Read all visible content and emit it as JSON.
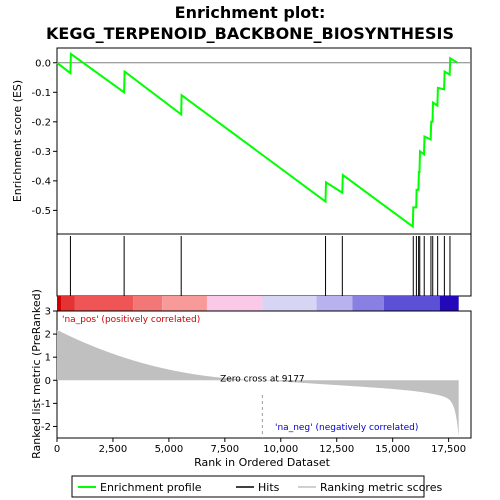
{
  "chart_data": {
    "type": "line",
    "title_line1": "Enrichment plot:",
    "title_line2": "KEGG_TERPENOID_BACKBONE_BIOSYNTHESIS",
    "es_panel": {
      "ylabel": "Enrichment score (ES)",
      "ylim": [
        -0.58,
        0.05
      ],
      "yticks": [
        "0.0",
        "-0.1",
        "-0.2",
        "-0.3",
        "-0.4",
        "-0.5"
      ],
      "ytick_values": [
        0.0,
        -0.1,
        -0.2,
        -0.3,
        -0.4,
        -0.5
      ],
      "series_name": "Enrichment profile",
      "color": "#00ff00",
      "points": [
        [
          0,
          0.0
        ],
        [
          600,
          -0.035
        ],
        [
          620,
          0.03
        ],
        [
          3000,
          -0.1
        ],
        [
          3020,
          -0.03
        ],
        [
          5550,
          -0.175
        ],
        [
          5570,
          -0.11
        ],
        [
          12000,
          -0.47
        ],
        [
          12020,
          -0.405
        ],
        [
          12750,
          -0.44
        ],
        [
          12770,
          -0.38
        ],
        [
          15900,
          -0.555
        ],
        [
          15920,
          -0.49
        ],
        [
          16050,
          -0.49
        ],
        [
          16070,
          -0.43
        ],
        [
          16150,
          -0.43
        ],
        [
          16170,
          -0.37
        ],
        [
          16200,
          -0.37
        ],
        [
          16220,
          -0.3
        ],
        [
          16400,
          -0.31
        ],
        [
          16420,
          -0.25
        ],
        [
          16700,
          -0.26
        ],
        [
          16720,
          -0.2
        ],
        [
          16780,
          -0.2
        ],
        [
          16800,
          -0.135
        ],
        [
          17000,
          -0.145
        ],
        [
          17020,
          -0.085
        ],
        [
          17300,
          -0.09
        ],
        [
          17320,
          -0.03
        ],
        [
          17550,
          -0.04
        ],
        [
          17570,
          0.015
        ],
        [
          17900,
          0.0
        ]
      ],
      "hits": [
        600,
        3000,
        5550,
        12000,
        12750,
        15920,
        16060,
        16160,
        16210,
        16410,
        16710,
        16790,
        17010,
        17310,
        17560
      ]
    },
    "rank_bar": {
      "segments": [
        [
          0,
          180,
          "#cc0000"
        ],
        [
          180,
          800,
          "#e43333"
        ],
        [
          800,
          3400,
          "#f05555"
        ],
        [
          3400,
          4700,
          "#f47777"
        ],
        [
          4700,
          6700,
          "#f89a9a"
        ],
        [
          6700,
          9177,
          "#fbc9e8"
        ],
        [
          9177,
          11600,
          "#d8d4f4"
        ],
        [
          11600,
          13200,
          "#b8b2ee"
        ],
        [
          13200,
          14600,
          "#8a80e4"
        ],
        [
          14600,
          17100,
          "#5b50d6"
        ],
        [
          17100,
          17950,
          "#2208b8"
        ]
      ]
    },
    "metric_panel": {
      "ylabel": "Ranked list metric (PreRanked)",
      "ylim": [
        -2.5,
        3.0
      ],
      "yticks": [
        "3",
        "2",
        "1",
        "0",
        "-1",
        "-2"
      ],
      "ytick_values": [
        3,
        2,
        1,
        0,
        -1,
        -2
      ],
      "xlabel": "Rank in Ordered Dataset",
      "xlim": [
        0,
        18500
      ],
      "xticks": [
        "0",
        "2,500",
        "5,000",
        "7,500",
        "10,000",
        "12,500",
        "15,000",
        "17,500"
      ],
      "xtick_values": [
        0,
        2500,
        5000,
        7500,
        10000,
        12500,
        15000,
        17500
      ],
      "zero_cross_label": "Zero cross at 9177",
      "zero_cross": 9177,
      "pos_label": "'na_pos' (positively correlated)",
      "neg_label": "'na_neg' (negatively correlated)",
      "pos_color": "#cc0000",
      "neg_color": "#0000cc",
      "n": 17950,
      "series_name": "Ranking metric scores",
      "fill_color": "#c0c0c0"
    },
    "legend": {
      "items": [
        {
          "label": "Enrichment profile",
          "color": "#00ff00"
        },
        {
          "label": "Hits",
          "color": "#000000"
        },
        {
          "label": "Ranking metric scores",
          "color": "#c0c0c0"
        }
      ]
    }
  }
}
